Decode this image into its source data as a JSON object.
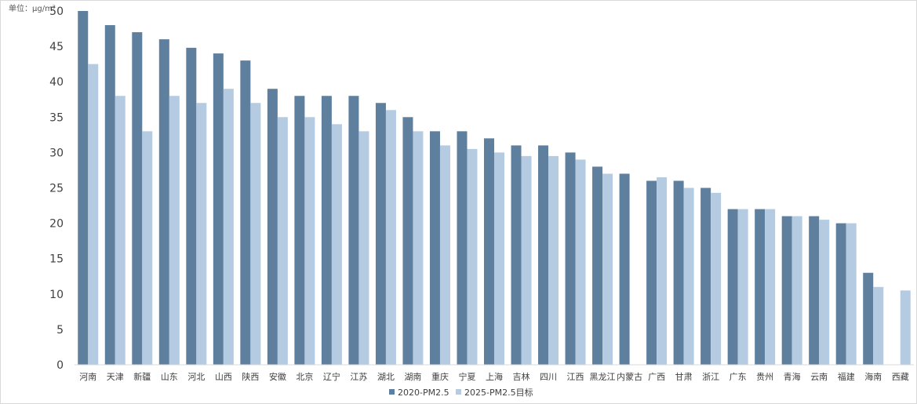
{
  "chart_data": {
    "type": "bar",
    "unit_label": "单位：μg/m³",
    "ylim": [
      0,
      50
    ],
    "yticks": [
      0,
      5,
      10,
      15,
      20,
      25,
      30,
      35,
      40,
      45,
      50
    ],
    "grid": false,
    "legend_position": "bottom",
    "categories": [
      "河南",
      "天津",
      "新疆",
      "山东",
      "河北",
      "山西",
      "陕西",
      "安徽",
      "北京",
      "辽宁",
      "江苏",
      "湖北",
      "湖南",
      "重庆",
      "宁夏",
      "上海",
      "吉林",
      "四川",
      "江西",
      "黑龙江",
      "内蒙古",
      "广西",
      "甘肃",
      "浙江",
      "广东",
      "贵州",
      "青海",
      "云南",
      "福建",
      "海南",
      "西藏"
    ],
    "series": [
      {
        "name": "2020-PM2.5",
        "color": "#5e7f9e",
        "values": [
          50,
          48,
          47,
          46,
          44.8,
          44,
          43,
          39,
          38,
          38,
          38,
          37,
          35,
          33,
          33,
          32,
          31,
          31,
          30,
          28,
          27,
          26,
          26,
          25,
          22,
          22,
          21,
          21,
          20,
          13,
          null
        ]
      },
      {
        "name": "2025-PM2.5目标",
        "color": "#b4cbe2",
        "values": [
          42.5,
          38,
          33,
          38,
          37,
          39,
          37,
          35,
          35,
          34,
          33,
          36,
          33,
          31,
          30.5,
          30,
          29.5,
          29.5,
          29,
          27,
          null,
          26.5,
          25,
          24.3,
          22,
          22,
          21,
          20.5,
          20,
          11,
          10.5
        ]
      }
    ]
  }
}
